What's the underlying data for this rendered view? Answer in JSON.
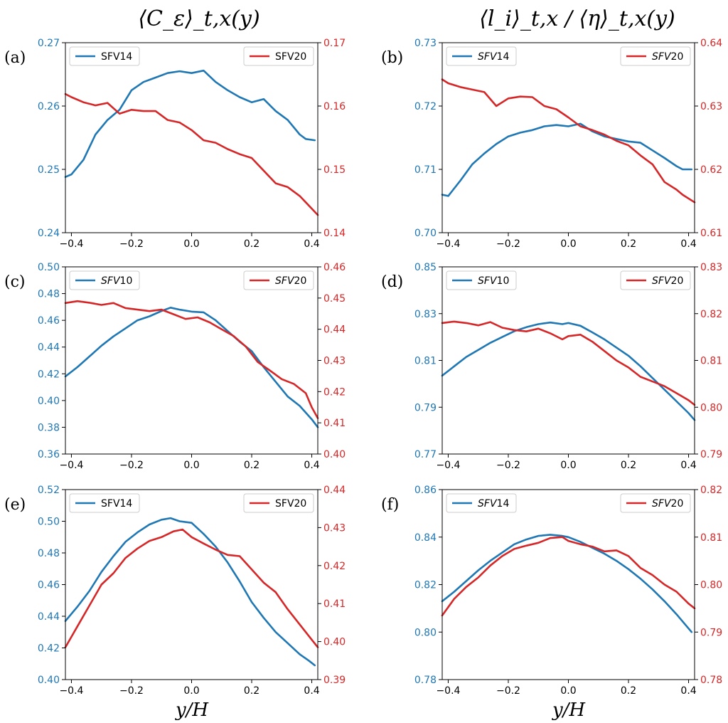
{
  "figure": {
    "column_titles": [
      "⟨C_ε⟩_t,x(y)",
      "⟨l_i⟩_t,x / ⟨η⟩_t,x(y)"
    ],
    "xlabel": "y/H",
    "colors": {
      "left_series": "#1f77b4",
      "right_series": "#d62728",
      "axes": "#000000"
    }
  },
  "chart_data": [
    {
      "panel": "(a)",
      "type": "line",
      "xlim": [
        -0.42,
        0.42
      ],
      "xticks": [
        -0.4,
        -0.2,
        0.0,
        0.2,
        0.4
      ],
      "xtick_labels": [
        "−0.4",
        "−0.2",
        "0.0",
        "0.2",
        "0.4"
      ],
      "left_axis": {
        "lim": [
          0.24,
          0.27
        ],
        "ticks": [
          0.24,
          0.25,
          0.26,
          0.27
        ],
        "tick_labels": [
          "0.24",
          "0.25",
          "0.26",
          "0.27"
        ]
      },
      "right_axis": {
        "lim": [
          0.14,
          0.17
        ],
        "ticks": [
          0.14,
          0.15,
          0.16,
          0.17
        ],
        "tick_labels": [
          "0.14",
          "0.15",
          "0.16",
          "0.17"
        ]
      },
      "series": [
        {
          "name": "SFV14",
          "axis": "left",
          "italic": false,
          "legend": "top-left",
          "x": [
            -0.42,
            -0.4,
            -0.36,
            -0.32,
            -0.28,
            -0.24,
            -0.2,
            -0.16,
            -0.12,
            -0.08,
            -0.04,
            0.0,
            0.04,
            0.08,
            0.12,
            0.16,
            0.2,
            0.24,
            0.28,
            0.32,
            0.36,
            0.38,
            0.41
          ],
          "y": [
            0.2488,
            0.2492,
            0.2515,
            0.2555,
            0.2578,
            0.2594,
            0.2625,
            0.2638,
            0.2645,
            0.2652,
            0.2655,
            0.2652,
            0.2656,
            0.2638,
            0.2625,
            0.2614,
            0.2606,
            0.2611,
            0.2592,
            0.2578,
            0.2555,
            0.2548,
            0.2546
          ]
        },
        {
          "name": "SFV20",
          "axis": "right",
          "italic": false,
          "legend": "top-right",
          "x": [
            -0.42,
            -0.4,
            -0.36,
            -0.32,
            -0.28,
            -0.24,
            -0.2,
            -0.16,
            -0.12,
            -0.08,
            -0.04,
            0.0,
            0.04,
            0.08,
            0.12,
            0.16,
            0.2,
            0.24,
            0.28,
            0.32,
            0.36,
            0.38,
            0.42
          ],
          "y": [
            0.1619,
            0.1614,
            0.1606,
            0.1601,
            0.1605,
            0.1588,
            0.1594,
            0.1592,
            0.1592,
            0.1578,
            0.1574,
            0.1562,
            0.1546,
            0.1542,
            0.1532,
            0.1524,
            0.1518,
            0.1498,
            0.1478,
            0.1472,
            0.1458,
            0.1448,
            0.1428
          ]
        }
      ]
    },
    {
      "panel": "(b)",
      "type": "line",
      "xlim": [
        -0.42,
        0.42
      ],
      "xticks": [
        -0.4,
        -0.2,
        0.0,
        0.2,
        0.4
      ],
      "xtick_labels": [
        "−0.4",
        "−0.2",
        "0.0",
        "0.2",
        "0.4"
      ],
      "left_axis": {
        "lim": [
          0.7,
          0.73
        ],
        "ticks": [
          0.7,
          0.71,
          0.72,
          0.73
        ],
        "tick_labels": [
          "0.70",
          "0.71",
          "0.72",
          "0.73"
        ]
      },
      "right_axis": {
        "lim": [
          0.61,
          0.64
        ],
        "ticks": [
          0.61,
          0.62,
          0.63,
          0.64
        ],
        "tick_labels": [
          "0.61",
          "0.62",
          "0.63",
          "0.64"
        ]
      },
      "series": [
        {
          "name": "SFV14",
          "axis": "left",
          "italic": true,
          "legend": "top-left",
          "x": [
            -0.42,
            -0.4,
            -0.36,
            -0.32,
            -0.28,
            -0.24,
            -0.2,
            -0.16,
            -0.12,
            -0.08,
            -0.04,
            0.0,
            0.04,
            0.08,
            0.12,
            0.16,
            0.2,
            0.24,
            0.28,
            0.32,
            0.36,
            0.38,
            0.41
          ],
          "y": [
            0.706,
            0.7058,
            0.7082,
            0.7108,
            0.7125,
            0.714,
            0.7152,
            0.7158,
            0.7162,
            0.7168,
            0.717,
            0.7168,
            0.7172,
            0.716,
            0.7152,
            0.7148,
            0.7144,
            0.7142,
            0.713,
            0.7118,
            0.7105,
            0.71,
            0.71
          ]
        },
        {
          "name": "SFV20",
          "axis": "right",
          "italic": true,
          "legend": "top-right",
          "x": [
            -0.42,
            -0.4,
            -0.36,
            -0.32,
            -0.28,
            -0.24,
            -0.2,
            -0.16,
            -0.12,
            -0.08,
            -0.04,
            0.0,
            0.04,
            0.08,
            0.12,
            0.16,
            0.2,
            0.24,
            0.28,
            0.32,
            0.36,
            0.38,
            0.42
          ],
          "y": [
            0.6342,
            0.6336,
            0.633,
            0.6326,
            0.6322,
            0.63,
            0.6312,
            0.6315,
            0.6314,
            0.63,
            0.6295,
            0.6282,
            0.6268,
            0.6262,
            0.6255,
            0.6245,
            0.6238,
            0.6222,
            0.6208,
            0.618,
            0.6168,
            0.616,
            0.6148
          ]
        }
      ]
    },
    {
      "panel": "(c)",
      "type": "line",
      "xlim": [
        -0.42,
        0.42
      ],
      "xticks": [
        -0.4,
        -0.2,
        0.0,
        0.2,
        0.4
      ],
      "xtick_labels": [
        "−0.4",
        "−0.2",
        "0.0",
        "0.2",
        "0.4"
      ],
      "left_axis": {
        "lim": [
          0.36,
          0.5
        ],
        "ticks": [
          0.36,
          0.38,
          0.4,
          0.42,
          0.44,
          0.46,
          0.48,
          0.5
        ],
        "tick_labels": [
          "0.36",
          "0.38",
          "0.40",
          "0.42",
          "0.44",
          "0.46",
          "0.48",
          "0.50"
        ]
      },
      "right_axis": {
        "lim": [
          0.4,
          0.46
        ],
        "ticks": [
          0.4,
          0.41,
          0.42,
          0.43,
          0.44,
          0.45,
          0.46
        ],
        "tick_labels": [
          "0.40",
          "0.41",
          "0.42",
          "0.43",
          "0.44",
          "0.45",
          "0.46"
        ]
      },
      "series": [
        {
          "name": "SFV10",
          "axis": "left",
          "italic": true,
          "legend": "top-left",
          "x": [
            -0.42,
            -0.38,
            -0.34,
            -0.3,
            -0.26,
            -0.22,
            -0.18,
            -0.14,
            -0.1,
            -0.07,
            -0.04,
            0.0,
            0.04,
            0.08,
            0.12,
            0.16,
            0.2,
            0.24,
            0.28,
            0.32,
            0.36,
            0.4,
            0.42
          ],
          "y": [
            0.418,
            0.425,
            0.433,
            0.441,
            0.448,
            0.454,
            0.46,
            0.463,
            0.467,
            0.4695,
            0.468,
            0.4665,
            0.466,
            0.46,
            0.452,
            0.444,
            0.437,
            0.425,
            0.414,
            0.403,
            0.396,
            0.386,
            0.38
          ]
        },
        {
          "name": "SFV20",
          "axis": "right",
          "italic": true,
          "legend": "top-right",
          "x": [
            -0.42,
            -0.38,
            -0.34,
            -0.3,
            -0.26,
            -0.22,
            -0.18,
            -0.14,
            -0.1,
            -0.06,
            -0.02,
            0.02,
            0.06,
            0.1,
            0.14,
            0.18,
            0.22,
            0.26,
            0.3,
            0.34,
            0.38,
            0.4,
            0.42
          ],
          "y": [
            0.4484,
            0.449,
            0.4485,
            0.4478,
            0.4484,
            0.4468,
            0.4463,
            0.4458,
            0.4463,
            0.4448,
            0.4433,
            0.4438,
            0.4422,
            0.44,
            0.4378,
            0.4345,
            0.4295,
            0.4268,
            0.424,
            0.4225,
            0.4195,
            0.415,
            0.4115
          ]
        }
      ]
    },
    {
      "panel": "(d)",
      "type": "line",
      "xlim": [
        -0.42,
        0.42
      ],
      "xticks": [
        -0.4,
        -0.2,
        0.0,
        0.2,
        0.4
      ],
      "xtick_labels": [
        "−0.4",
        "−0.2",
        "0.0",
        "0.2",
        "0.4"
      ],
      "left_axis": {
        "lim": [
          0.77,
          0.85
        ],
        "ticks": [
          0.77,
          0.79,
          0.81,
          0.83,
          0.85
        ],
        "tick_labels": [
          "0.77",
          "0.79",
          "0.81",
          "0.83",
          "0.85"
        ]
      },
      "right_axis": {
        "lim": [
          0.79,
          0.83
        ],
        "ticks": [
          0.79,
          0.8,
          0.81,
          0.82,
          0.83
        ],
        "tick_labels": [
          "0.79",
          "0.80",
          "0.81",
          "0.82",
          "0.83"
        ]
      },
      "series": [
        {
          "name": "SFV10",
          "axis": "left",
          "italic": true,
          "legend": "top-left",
          "x": [
            -0.42,
            -0.38,
            -0.34,
            -0.3,
            -0.26,
            -0.22,
            -0.18,
            -0.14,
            -0.1,
            -0.06,
            -0.02,
            0.0,
            0.04,
            0.08,
            0.12,
            0.16,
            0.2,
            0.24,
            0.28,
            0.32,
            0.36,
            0.4,
            0.42
          ],
          "y": [
            0.8035,
            0.8075,
            0.8115,
            0.8145,
            0.8175,
            0.82,
            0.8225,
            0.8242,
            0.8255,
            0.8262,
            0.8255,
            0.826,
            0.8248,
            0.822,
            0.819,
            0.8155,
            0.812,
            0.8075,
            0.8025,
            0.7975,
            0.7925,
            0.7875,
            0.7845
          ]
        },
        {
          "name": "SFV20",
          "axis": "right",
          "italic": true,
          "legend": "top-right",
          "x": [
            -0.42,
            -0.38,
            -0.34,
            -0.3,
            -0.26,
            -0.22,
            -0.18,
            -0.14,
            -0.1,
            -0.06,
            -0.02,
            0.0,
            0.04,
            0.08,
            0.12,
            0.16,
            0.2,
            0.24,
            0.28,
            0.32,
            0.36,
            0.4,
            0.42
          ],
          "y": [
            0.818,
            0.8183,
            0.818,
            0.8175,
            0.8182,
            0.817,
            0.8165,
            0.8162,
            0.8168,
            0.8158,
            0.8145,
            0.8152,
            0.8155,
            0.814,
            0.812,
            0.81,
            0.8085,
            0.8065,
            0.8055,
            0.8045,
            0.803,
            0.8015,
            0.8005
          ]
        }
      ]
    },
    {
      "panel": "(e)",
      "type": "line",
      "xlim": [
        -0.42,
        0.42
      ],
      "xticks": [
        -0.4,
        -0.2,
        0.0,
        0.2,
        0.4
      ],
      "xtick_labels": [
        "−0.4",
        "−0.2",
        "0.0",
        "0.2",
        "0.4"
      ],
      "left_axis": {
        "lim": [
          0.4,
          0.52
        ],
        "ticks": [
          0.4,
          0.42,
          0.44,
          0.46,
          0.48,
          0.5,
          0.52
        ],
        "tick_labels": [
          "0.40",
          "0.42",
          "0.44",
          "0.46",
          "0.48",
          "0.50",
          "0.52"
        ]
      },
      "right_axis": {
        "lim": [
          0.39,
          0.44
        ],
        "ticks": [
          0.39,
          0.4,
          0.41,
          0.42,
          0.43,
          0.44
        ],
        "tick_labels": [
          "0.39",
          "0.40",
          "0.41",
          "0.42",
          "0.43",
          "0.44"
        ]
      },
      "series": [
        {
          "name": "SFV14",
          "axis": "left",
          "italic": false,
          "legend": "top-left",
          "x": [
            -0.42,
            -0.38,
            -0.34,
            -0.3,
            -0.26,
            -0.22,
            -0.18,
            -0.14,
            -0.1,
            -0.07,
            -0.04,
            0.0,
            0.04,
            0.08,
            0.12,
            0.16,
            0.2,
            0.24,
            0.28,
            0.32,
            0.36,
            0.39,
            0.41
          ],
          "y": [
            0.437,
            0.446,
            0.456,
            0.468,
            0.478,
            0.487,
            0.493,
            0.498,
            0.501,
            0.502,
            0.5,
            0.499,
            0.492,
            0.484,
            0.474,
            0.462,
            0.449,
            0.439,
            0.43,
            0.423,
            0.416,
            0.412,
            0.409
          ]
        },
        {
          "name": "SFV20",
          "axis": "right",
          "italic": false,
          "legend": "top-right",
          "x": [
            -0.42,
            -0.38,
            -0.34,
            -0.3,
            -0.26,
            -0.22,
            -0.18,
            -0.14,
            -0.1,
            -0.06,
            -0.03,
            0.0,
            0.04,
            0.08,
            0.12,
            0.16,
            0.2,
            0.24,
            0.28,
            0.32,
            0.36,
            0.4,
            0.42
          ],
          "y": [
            0.3985,
            0.404,
            0.4095,
            0.415,
            0.418,
            0.422,
            0.4245,
            0.4265,
            0.4275,
            0.429,
            0.4295,
            0.4275,
            0.4258,
            0.4242,
            0.4228,
            0.4225,
            0.419,
            0.4155,
            0.413,
            0.4085,
            0.4045,
            0.4005,
            0.3985
          ]
        }
      ]
    },
    {
      "panel": "(f)",
      "type": "line",
      "xlim": [
        -0.42,
        0.42
      ],
      "xticks": [
        -0.4,
        -0.2,
        0.0,
        0.2,
        0.4
      ],
      "xtick_labels": [
        "−0.4",
        "−0.2",
        "0.0",
        "0.2",
        "0.4"
      ],
      "left_axis": {
        "lim": [
          0.78,
          0.86
        ],
        "ticks": [
          0.78,
          0.8,
          0.82,
          0.84,
          0.86
        ],
        "tick_labels": [
          "0.78",
          "0.80",
          "0.82",
          "0.84",
          "0.86"
        ]
      },
      "right_axis": {
        "lim": [
          0.78,
          0.82
        ],
        "ticks": [
          0.78,
          0.79,
          0.8,
          0.81,
          0.82
        ],
        "tick_labels": [
          "0.78",
          "0.79",
          "0.80",
          "0.81",
          "0.82"
        ]
      },
      "series": [
        {
          "name": "SFV14",
          "axis": "left",
          "italic": true,
          "legend": "top-left",
          "x": [
            -0.42,
            -0.38,
            -0.34,
            -0.3,
            -0.26,
            -0.22,
            -0.18,
            -0.14,
            -0.1,
            -0.06,
            -0.02,
            0.0,
            0.04,
            0.08,
            0.12,
            0.16,
            0.2,
            0.24,
            0.28,
            0.32,
            0.36,
            0.39,
            0.41
          ],
          "y": [
            0.813,
            0.817,
            0.8215,
            0.826,
            0.83,
            0.8335,
            0.837,
            0.839,
            0.8405,
            0.841,
            0.8405,
            0.84,
            0.838,
            0.8355,
            0.833,
            0.83,
            0.8265,
            0.8225,
            0.818,
            0.813,
            0.8075,
            0.803,
            0.8
          ]
        },
        {
          "name": "SFV20",
          "axis": "right",
          "italic": true,
          "legend": "top-right",
          "x": [
            -0.42,
            -0.38,
            -0.34,
            -0.3,
            -0.26,
            -0.22,
            -0.18,
            -0.14,
            -0.1,
            -0.06,
            -0.02,
            0.0,
            0.04,
            0.08,
            0.12,
            0.16,
            0.2,
            0.24,
            0.28,
            0.32,
            0.36,
            0.4,
            0.42
          ],
          "y": [
            0.7935,
            0.797,
            0.7995,
            0.8015,
            0.804,
            0.806,
            0.8075,
            0.8082,
            0.8088,
            0.8098,
            0.81,
            0.8092,
            0.8085,
            0.808,
            0.807,
            0.8072,
            0.806,
            0.8035,
            0.802,
            0.8,
            0.7985,
            0.796,
            0.795
          ]
        }
      ]
    }
  ]
}
